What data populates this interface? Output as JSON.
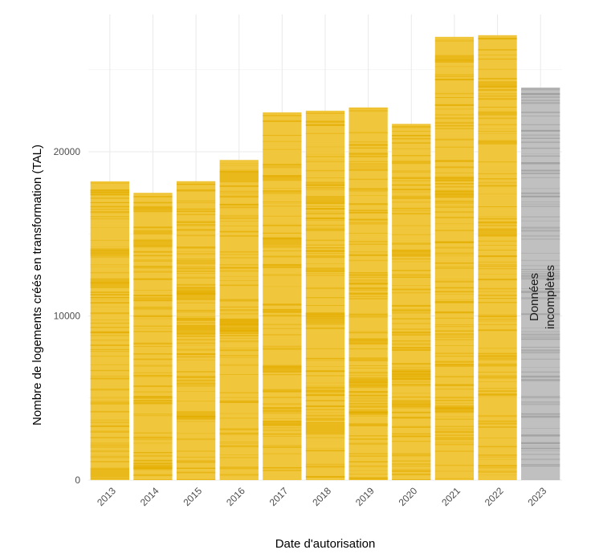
{
  "chart_data": {
    "type": "bar",
    "categories": [
      "2013",
      "2014",
      "2015",
      "2016",
      "2017",
      "2018",
      "2019",
      "2020",
      "2021",
      "2022",
      "2023"
    ],
    "values": [
      18200,
      17500,
      18200,
      19500,
      22400,
      22500,
      22700,
      21700,
      27000,
      27100,
      23900
    ],
    "xlabel": "Date d'autorisation",
    "ylabel": "Nombre de logements créés en transformation  (TAL)",
    "ylim": [
      0,
      29000
    ],
    "y_ticks": [
      0,
      10000,
      20000
    ],
    "y_tick_labels": [
      "0",
      "10000",
      "20000"
    ],
    "grid": true,
    "colors": {
      "complete": "#f0c63c",
      "complete_stripe": "#e3ad00",
      "incomplete": "#c0c0c0",
      "incomplete_stripe": "#9a9a9a"
    },
    "incomplete_category": "2023",
    "annotation": {
      "line1": "Données",
      "line2": "incomplètes"
    }
  }
}
